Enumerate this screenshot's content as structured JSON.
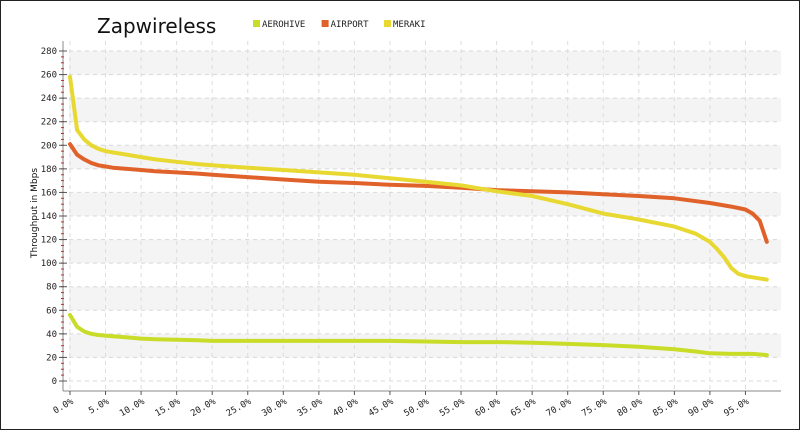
{
  "chart_data": {
    "type": "line",
    "title": "Zapwireless",
    "ylabel": "Throughput in Mbps",
    "xlabel": "",
    "ylim": [
      0,
      280
    ],
    "y_ticks": [
      "0",
      "20",
      "40",
      "60",
      "80",
      "100",
      "120",
      "140",
      "160",
      "180",
      "200",
      "220",
      "240",
      "260",
      "280"
    ],
    "x_ticks": [
      "0.0%",
      "5.0%",
      "10.0%",
      "15.0%",
      "20.0%",
      "25.0%",
      "30.0%",
      "35.0%",
      "40.0%",
      "45.0%",
      "50.0%",
      "55.0%",
      "60.0%",
      "65.0%",
      "70.0%",
      "75.0%",
      "80.0%",
      "85.0%",
      "90.0%",
      "95.0%"
    ],
    "xlim": [
      0,
      100
    ],
    "grid": true,
    "legend_position": "top",
    "series": [
      {
        "name": "AEROHIVE",
        "color": "#c8dc28",
        "points": [
          [
            0,
            56
          ],
          [
            1,
            46
          ],
          [
            2,
            42
          ],
          [
            3,
            40
          ],
          [
            4,
            39
          ],
          [
            5,
            38.5
          ],
          [
            6,
            38
          ],
          [
            8,
            37
          ],
          [
            10,
            36
          ],
          [
            12,
            35.5
          ],
          [
            15,
            35
          ],
          [
            18,
            34.5
          ],
          [
            20,
            34
          ],
          [
            25,
            34
          ],
          [
            30,
            34
          ],
          [
            35,
            34
          ],
          [
            40,
            34
          ],
          [
            45,
            34
          ],
          [
            50,
            33.5
          ],
          [
            55,
            33
          ],
          [
            60,
            33
          ],
          [
            65,
            32.5
          ],
          [
            70,
            31.5
          ],
          [
            75,
            30.5
          ],
          [
            80,
            29
          ],
          [
            85,
            27
          ],
          [
            88,
            25
          ],
          [
            90,
            23.5
          ],
          [
            93,
            23
          ],
          [
            96,
            23
          ],
          [
            98,
            22
          ]
        ]
      },
      {
        "name": "AIRPORT",
        "color": "#e0622a",
        "points": [
          [
            0,
            201
          ],
          [
            1,
            192
          ],
          [
            2,
            188
          ],
          [
            3,
            185
          ],
          [
            4,
            183
          ],
          [
            5,
            182
          ],
          [
            6,
            181
          ],
          [
            8,
            180
          ],
          [
            10,
            179
          ],
          [
            12,
            178
          ],
          [
            15,
            177
          ],
          [
            18,
            176
          ],
          [
            20,
            175
          ],
          [
            25,
            173
          ],
          [
            30,
            171
          ],
          [
            35,
            169
          ],
          [
            40,
            168
          ],
          [
            45,
            166.5
          ],
          [
            50,
            165.5
          ],
          [
            55,
            164
          ],
          [
            60,
            162
          ],
          [
            65,
            161
          ],
          [
            70,
            160
          ],
          [
            75,
            158.5
          ],
          [
            80,
            157
          ],
          [
            85,
            155
          ],
          [
            90,
            151
          ],
          [
            93,
            148
          ],
          [
            95,
            145.5
          ],
          [
            96,
            142
          ],
          [
            97,
            136
          ],
          [
            98,
            118
          ]
        ]
      },
      {
        "name": "MERAKI",
        "color": "#e8d832",
        "points": [
          [
            0,
            258
          ],
          [
            1,
            213
          ],
          [
            2,
            205
          ],
          [
            3,
            200
          ],
          [
            4,
            197
          ],
          [
            5,
            195
          ],
          [
            6,
            194
          ],
          [
            8,
            192
          ],
          [
            10,
            190
          ],
          [
            12,
            188
          ],
          [
            15,
            186
          ],
          [
            18,
            184
          ],
          [
            20,
            183
          ],
          [
            25,
            181
          ],
          [
            30,
            179
          ],
          [
            35,
            177
          ],
          [
            40,
            175
          ],
          [
            45,
            172
          ],
          [
            50,
            169
          ],
          [
            55,
            166
          ],
          [
            60,
            161
          ],
          [
            65,
            157
          ],
          [
            70,
            150
          ],
          [
            75,
            142
          ],
          [
            80,
            137
          ],
          [
            85,
            131
          ],
          [
            88,
            125
          ],
          [
            90,
            118
          ],
          [
            91,
            112
          ],
          [
            92,
            105
          ],
          [
            93,
            96
          ],
          [
            94,
            91
          ],
          [
            95,
            89
          ],
          [
            96,
            88
          ],
          [
            98,
            86
          ]
        ]
      }
    ]
  }
}
